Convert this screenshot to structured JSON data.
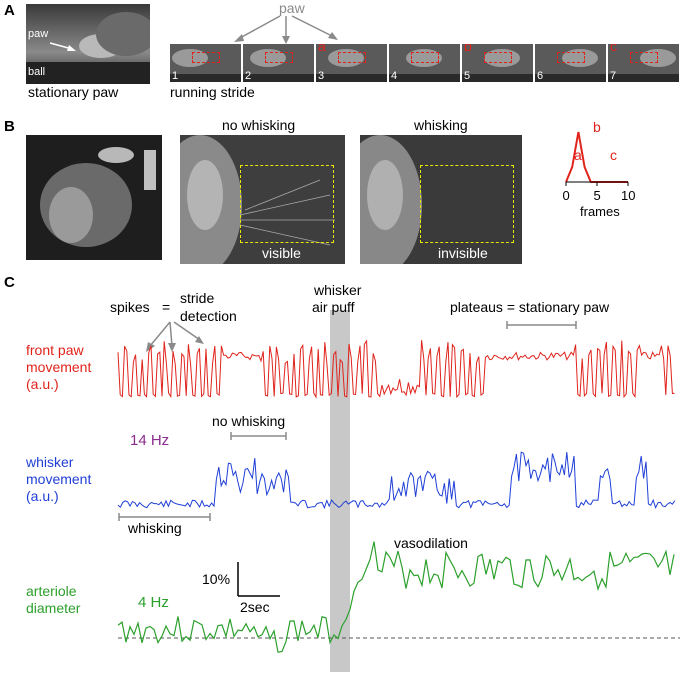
{
  "panel_a": {
    "letter": "A",
    "paw_label": "paw",
    "ball_label": "ball",
    "stationary_label": "stationary paw",
    "running_label": "running stride",
    "paw_top_label": "paw",
    "frame_numbers": [
      "1",
      "2",
      "3",
      "4",
      "5",
      "6",
      "7"
    ],
    "frame_letters": [
      "a",
      "b",
      "c"
    ]
  },
  "panel_b": {
    "letter": "B",
    "no_whisking": "no whisking",
    "whisking": "whisking",
    "visible": "visible",
    "invisible": "invisible",
    "peak_labels": {
      "a": "a",
      "b": "b",
      "c": "c"
    },
    "axis_ticks": [
      "0",
      "5",
      "10"
    ],
    "axis_label": "frames"
  },
  "panel_c": {
    "letter": "C",
    "spikes": "spikes",
    "equals1": "=",
    "stride": "stride",
    "detection": "detection",
    "whisker_top": "whisker",
    "air_puff": "air puff",
    "plateaus": "plateaus = stationary paw",
    "front_paw_1": "front paw",
    "front_paw_2": "movement",
    "front_paw_3": "(a.u.)",
    "hz14": "14 Hz",
    "no_whisking": "no whisking",
    "whisker_1": "whisker",
    "whisker_2": "movement",
    "whisker_3": "(a.u.)",
    "whisking": "whisking",
    "vasodilation": "vasodilation",
    "scale_pct": "10%",
    "scale_sec": "2sec",
    "arteriole_1": "arteriole",
    "arteriole_2": "diameter",
    "hz4": "4 Hz"
  },
  "colors": {
    "red": "#e0231b",
    "blue": "#1f3fd6",
    "green": "#2ca02c",
    "purple": "#8b2c8f",
    "gray_bar": "#c8c8c8",
    "yellow": "#e8e800"
  },
  "chart_data": {
    "type": "line",
    "x": [
      0,
      1,
      2,
      3,
      4,
      5,
      6,
      7,
      8,
      9,
      10
    ],
    "series": [
      {
        "values": [
          0,
          0.3,
          1,
          0.3,
          0,
          0,
          0,
          0,
          0,
          0,
          0
        ]
      }
    ],
    "xlabel": "frames",
    "xticks": [
      "0",
      "5",
      "10"
    ],
    "xlim": [
      0,
      10
    ]
  }
}
